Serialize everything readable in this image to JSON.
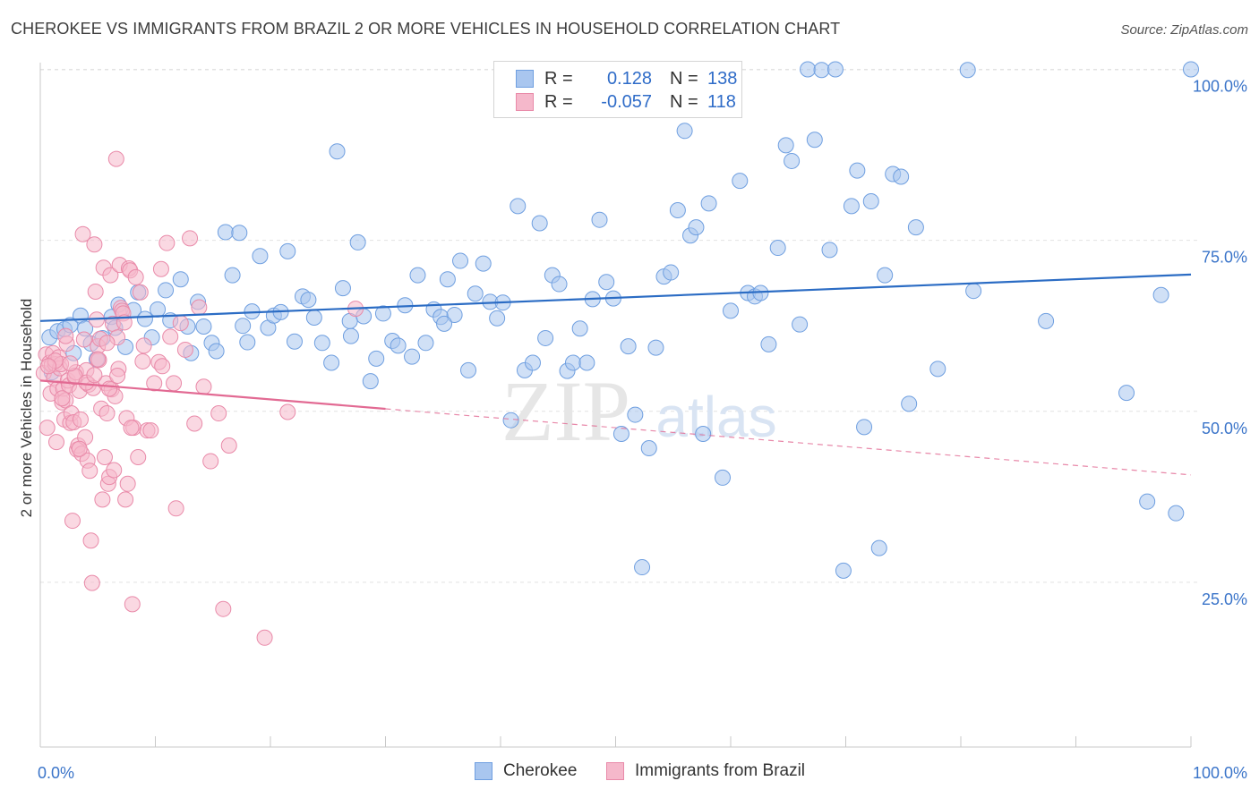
{
  "header": {
    "title": "CHEROKEE VS IMMIGRANTS FROM BRAZIL 2 OR MORE VEHICLES IN HOUSEHOLD CORRELATION CHART",
    "source": "Source: ZipAtlas.com"
  },
  "legend": {
    "rows": [
      {
        "r_label": "R =",
        "r_value": "0.128",
        "n_label": "N =",
        "n_value": "138"
      },
      {
        "r_label": "R =",
        "r_value": "-0.057",
        "n_label": "N =",
        "n_value": "118"
      }
    ]
  },
  "colors": {
    "cherokee_fill": "#a9c6ef",
    "cherokee_stroke": "#6f9fe0",
    "cherokee_line": "#2b6cc4",
    "brazil_fill": "#f5b8cb",
    "brazil_stroke": "#e98aa9",
    "brazil_line": "#e26a93",
    "tick_label": "#3a74c9"
  },
  "chart_data": {
    "type": "scatter",
    "title": "CHEROKEE VS IMMIGRANTS FROM BRAZIL 2 OR MORE VEHICLES IN HOUSEHOLD CORRELATION CHART",
    "xlabel": "",
    "ylabel": "2 or more Vehicles in Household",
    "xlim": [
      0,
      100
    ],
    "ylim": [
      0,
      102
    ],
    "x_tick_labels": [
      "0.0%",
      "100.0%"
    ],
    "y_tick_labels": [
      "25.0%",
      "50.0%",
      "75.0%",
      "100.0%"
    ],
    "y_ticks": [
      25,
      50,
      75,
      100
    ],
    "grid": true,
    "legend_position": "bottom-center",
    "watermark": {
      "zip": "ZIP",
      "atlas": "atlas"
    },
    "series": [
      {
        "name": "Cherokee",
        "r": 0.128,
        "n": 138,
        "trend": {
          "x0": 0,
          "y0": 63.2,
          "x1": 100,
          "y1": 70.0,
          "dashed_from": null
        },
        "points": [
          [
            0.8,
            60.8
          ],
          [
            1.5,
            61.7
          ],
          [
            2.1,
            62.0
          ],
          [
            2.6,
            62.6
          ],
          [
            3.5,
            64.0
          ],
          [
            3.9,
            62.1
          ],
          [
            4.4,
            59.9
          ],
          [
            4.9,
            57.6
          ],
          [
            5.4,
            60.7
          ],
          [
            6.2,
            63.8
          ],
          [
            6.8,
            65.6
          ],
          [
            7.4,
            59.4
          ],
          [
            8.1,
            64.8
          ],
          [
            8.5,
            67.4
          ],
          [
            9.1,
            63.5
          ],
          [
            10.2,
            64.9
          ],
          [
            10.9,
            67.7
          ],
          [
            11.3,
            63.3
          ],
          [
            12.2,
            69.3
          ],
          [
            12.8,
            62.4
          ],
          [
            13.7,
            66.0
          ],
          [
            14.2,
            62.4
          ],
          [
            14.9,
            60.0
          ],
          [
            15.3,
            58.8
          ],
          [
            16.1,
            76.2
          ],
          [
            16.7,
            69.9
          ],
          [
            17.3,
            76.1
          ],
          [
            18.0,
            60.1
          ],
          [
            18.4,
            64.6
          ],
          [
            19.1,
            72.7
          ],
          [
            19.8,
            62.2
          ],
          [
            20.3,
            64.0
          ],
          [
            20.9,
            64.5
          ],
          [
            21.5,
            73.4
          ],
          [
            22.1,
            60.2
          ],
          [
            22.8,
            66.8
          ],
          [
            23.3,
            66.3
          ],
          [
            23.8,
            63.7
          ],
          [
            24.5,
            60.0
          ],
          [
            25.3,
            57.1
          ],
          [
            25.8,
            88.0
          ],
          [
            26.3,
            68.0
          ],
          [
            27.0,
            61.0
          ],
          [
            27.6,
            74.7
          ],
          [
            28.1,
            63.9
          ],
          [
            28.7,
            54.4
          ],
          [
            29.2,
            57.7
          ],
          [
            29.8,
            64.3
          ],
          [
            30.6,
            60.3
          ],
          [
            31.1,
            59.6
          ],
          [
            31.7,
            65.5
          ],
          [
            32.3,
            58.0
          ],
          [
            32.8,
            69.9
          ],
          [
            33.5,
            60.0
          ],
          [
            34.2,
            64.9
          ],
          [
            34.8,
            63.8
          ],
          [
            35.4,
            69.3
          ],
          [
            36.0,
            64.1
          ],
          [
            36.5,
            72.0
          ],
          [
            37.2,
            56.0
          ],
          [
            37.8,
            67.2
          ],
          [
            38.5,
            71.6
          ],
          [
            39.1,
            66.0
          ],
          [
            39.7,
            63.6
          ],
          [
            40.2,
            65.9
          ],
          [
            40.9,
            48.7
          ],
          [
            41.5,
            80.0
          ],
          [
            42.1,
            56.0
          ],
          [
            42.8,
            57.1
          ],
          [
            43.4,
            77.5
          ],
          [
            43.9,
            60.7
          ],
          [
            44.5,
            69.9
          ],
          [
            45.1,
            68.6
          ],
          [
            45.8,
            55.9
          ],
          [
            46.3,
            57.1
          ],
          [
            46.9,
            62.1
          ],
          [
            47.5,
            57.1
          ],
          [
            48.0,
            66.4
          ],
          [
            48.6,
            78.0
          ],
          [
            49.2,
            68.9
          ],
          [
            49.8,
            66.5
          ],
          [
            50.5,
            46.7
          ],
          [
            51.1,
            59.5
          ],
          [
            51.7,
            49.5
          ],
          [
            52.3,
            27.2
          ],
          [
            52.9,
            44.6
          ],
          [
            53.5,
            59.3
          ],
          [
            54.2,
            69.7
          ],
          [
            54.8,
            70.3
          ],
          [
            55.4,
            79.4
          ],
          [
            56.0,
            91.0
          ],
          [
            56.5,
            75.7
          ],
          [
            57.0,
            76.9
          ],
          [
            57.6,
            46.7
          ],
          [
            58.1,
            80.4
          ],
          [
            58.7,
            100.0
          ],
          [
            59.3,
            40.3
          ],
          [
            60.0,
            64.7
          ],
          [
            60.8,
            83.7
          ],
          [
            61.5,
            67.3
          ],
          [
            62.1,
            66.8
          ],
          [
            62.6,
            67.3
          ],
          [
            63.3,
            59.8
          ],
          [
            64.1,
            73.9
          ],
          [
            64.8,
            88.9
          ],
          [
            65.3,
            86.6
          ],
          [
            66.0,
            62.7
          ],
          [
            66.7,
            100.0
          ],
          [
            67.3,
            89.7
          ],
          [
            67.9,
            99.9
          ],
          [
            68.6,
            73.6
          ],
          [
            69.1,
            100.0
          ],
          [
            69.8,
            26.7
          ],
          [
            70.5,
            80.0
          ],
          [
            71.0,
            85.2
          ],
          [
            71.6,
            47.7
          ],
          [
            72.2,
            80.7
          ],
          [
            72.9,
            30.0
          ],
          [
            73.4,
            69.9
          ],
          [
            74.1,
            84.7
          ],
          [
            74.8,
            84.3
          ],
          [
            75.5,
            51.1
          ],
          [
            76.1,
            76.9
          ],
          [
            78.0,
            56.2
          ],
          [
            80.6,
            99.9
          ],
          [
            81.1,
            67.6
          ],
          [
            87.4,
            63.2
          ],
          [
            94.4,
            52.7
          ],
          [
            96.2,
            36.8
          ],
          [
            97.4,
            67.0
          ],
          [
            98.7,
            35.1
          ],
          [
            100.0,
            100.0
          ],
          [
            1.0,
            55.7
          ],
          [
            2.9,
            58.5
          ],
          [
            6.5,
            62.2
          ],
          [
            9.7,
            60.8
          ],
          [
            13.1,
            58.5
          ],
          [
            17.6,
            62.5
          ],
          [
            26.9,
            63.2
          ],
          [
            35.1,
            62.8
          ]
        ]
      },
      {
        "name": "Immigrants from Brazil",
        "r": -0.057,
        "n": 118,
        "trend": {
          "x0": 0,
          "y0": 54.5,
          "x1": 100,
          "y1": 40.7,
          "dashed_from": 30
        },
        "points": [
          [
            0.3,
            55.6
          ],
          [
            0.5,
            58.3
          ],
          [
            0.6,
            47.6
          ],
          [
            0.8,
            57.1
          ],
          [
            0.9,
            52.6
          ],
          [
            1.0,
            56.8
          ],
          [
            1.1,
            58.5
          ],
          [
            1.2,
            54.9
          ],
          [
            1.3,
            56.9
          ],
          [
            1.4,
            45.5
          ],
          [
            1.5,
            53.3
          ],
          [
            1.6,
            57.9
          ],
          [
            1.7,
            56.3
          ],
          [
            1.8,
            56.9
          ],
          [
            1.9,
            51.3
          ],
          [
            2.0,
            53.3
          ],
          [
            2.1,
            48.8
          ],
          [
            2.2,
            51.6
          ],
          [
            2.3,
            59.9
          ],
          [
            2.4,
            54.5
          ],
          [
            2.5,
            53.8
          ],
          [
            2.6,
            48.3
          ],
          [
            2.7,
            49.7
          ],
          [
            2.8,
            34.0
          ],
          [
            2.9,
            48.4
          ],
          [
            3.0,
            55.0
          ],
          [
            3.1,
            55.7
          ],
          [
            3.2,
            44.4
          ],
          [
            3.3,
            45.0
          ],
          [
            3.4,
            53.0
          ],
          [
            3.5,
            48.8
          ],
          [
            3.6,
            43.8
          ],
          [
            3.7,
            75.9
          ],
          [
            3.8,
            60.5
          ],
          [
            3.9,
            46.2
          ],
          [
            4.0,
            56.0
          ],
          [
            4.1,
            42.8
          ],
          [
            4.2,
            53.9
          ],
          [
            4.3,
            41.3
          ],
          [
            4.4,
            31.1
          ],
          [
            4.5,
            24.9
          ],
          [
            4.6,
            53.4
          ],
          [
            4.7,
            74.4
          ],
          [
            4.8,
            67.5
          ],
          [
            4.9,
            63.4
          ],
          [
            5.0,
            59.5
          ],
          [
            5.1,
            57.5
          ],
          [
            5.2,
            60.6
          ],
          [
            5.3,
            50.4
          ],
          [
            5.4,
            37.1
          ],
          [
            5.5,
            71.0
          ],
          [
            5.6,
            43.3
          ],
          [
            5.7,
            54.1
          ],
          [
            5.8,
            49.7
          ],
          [
            5.9,
            39.4
          ],
          [
            6.0,
            40.4
          ],
          [
            6.1,
            69.9
          ],
          [
            6.2,
            53.2
          ],
          [
            6.3,
            62.8
          ],
          [
            6.4,
            41.4
          ],
          [
            6.5,
            52.2
          ],
          [
            6.6,
            86.9
          ],
          [
            6.7,
            60.8
          ],
          [
            6.8,
            56.2
          ],
          [
            6.9,
            71.4
          ],
          [
            7.0,
            65.1
          ],
          [
            7.1,
            64.7
          ],
          [
            7.2,
            64.3
          ],
          [
            7.3,
            63.0
          ],
          [
            7.4,
            37.1
          ],
          [
            7.5,
            49.0
          ],
          [
            7.6,
            39.4
          ],
          [
            7.7,
            70.9
          ],
          [
            7.8,
            70.6
          ],
          [
            8.0,
            21.8
          ],
          [
            8.1,
            47.6
          ],
          [
            8.3,
            69.6
          ],
          [
            8.5,
            43.3
          ],
          [
            8.7,
            67.4
          ],
          [
            9.0,
            59.6
          ],
          [
            9.3,
            47.2
          ],
          [
            9.6,
            47.2
          ],
          [
            9.9,
            54.1
          ],
          [
            10.3,
            57.2
          ],
          [
            10.6,
            56.6
          ],
          [
            11.0,
            74.6
          ],
          [
            11.3,
            60.9
          ],
          [
            11.6,
            54.1
          ],
          [
            11.8,
            35.8
          ],
          [
            12.2,
            62.9
          ],
          [
            12.6,
            59.0
          ],
          [
            13.0,
            75.3
          ],
          [
            13.4,
            48.2
          ],
          [
            13.8,
            65.2
          ],
          [
            14.2,
            53.6
          ],
          [
            14.8,
            42.7
          ],
          [
            15.5,
            49.7
          ],
          [
            15.9,
            21.1
          ],
          [
            16.4,
            45.0
          ],
          [
            19.5,
            16.9
          ],
          [
            21.5,
            49.9
          ],
          [
            27.4,
            65.0
          ],
          [
            1.3,
            57.4
          ],
          [
            2.2,
            61.0
          ],
          [
            3.0,
            55.2
          ],
          [
            4.0,
            54.2
          ],
          [
            5.0,
            57.6
          ],
          [
            6.0,
            53.3
          ],
          [
            0.7,
            56.6
          ],
          [
            1.9,
            51.9
          ],
          [
            2.6,
            57.0
          ],
          [
            3.4,
            44.5
          ],
          [
            4.7,
            55.3
          ],
          [
            5.8,
            60.0
          ],
          [
            6.7,
            55.2
          ],
          [
            7.9,
            47.6
          ],
          [
            8.9,
            57.3
          ],
          [
            10.5,
            70.8
          ]
        ]
      }
    ]
  }
}
